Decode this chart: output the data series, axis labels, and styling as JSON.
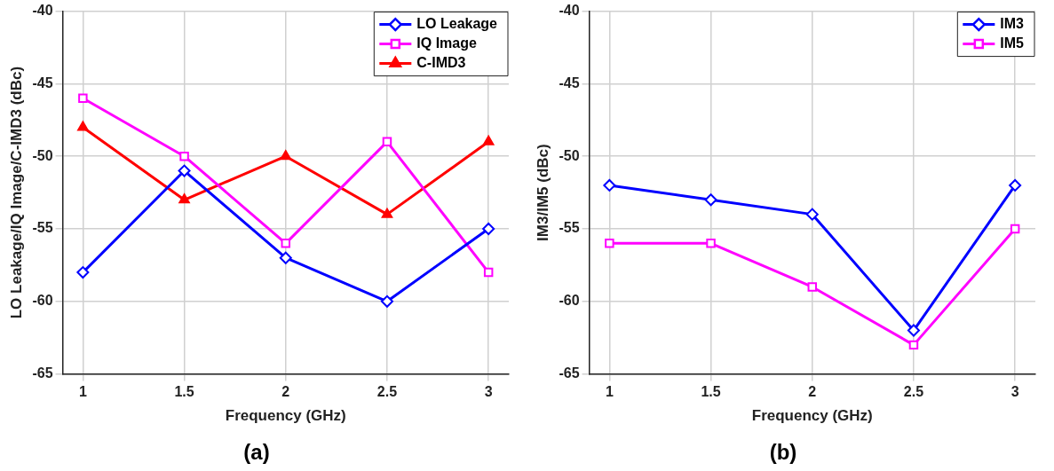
{
  "chart_data": [
    {
      "type": "line",
      "title": "(a)",
      "xlabel": "Frequency (GHz)",
      "ylabel": "LO Leakage/IQ Image/C-IMD3 (dBc)",
      "x": [
        1,
        1.5,
        2,
        2.5,
        3
      ],
      "xlim": [
        0.9,
        3.1
      ],
      "xticks": [
        1,
        1.5,
        2,
        2.5,
        3
      ],
      "ylim": [
        -65,
        -40
      ],
      "yticks": [
        -65,
        -60,
        -55,
        -50,
        -45,
        -40
      ],
      "grid": true,
      "legend": "top right",
      "series": [
        {
          "name": "LO Leakage",
          "color": "#0000ff",
          "marker": "diamond",
          "values": [
            -58,
            -51,
            -57,
            -60,
            -55
          ]
        },
        {
          "name": "IQ Image",
          "color": "#ff00ff",
          "marker": "square",
          "values": [
            -46,
            -50,
            -56,
            -49,
            -58
          ]
        },
        {
          "name": "C-IMD3",
          "color": "#ff0000",
          "marker": "triangle",
          "values": [
            -48,
            -53,
            -50,
            -54,
            -49
          ]
        }
      ]
    },
    {
      "type": "line",
      "title": "(b)",
      "xlabel": "Frequency (GHz)",
      "ylabel": "IM3/IM5 (dBc)",
      "x": [
        1,
        1.5,
        2,
        2.5,
        3
      ],
      "xlim": [
        0.9,
        3.1
      ],
      "xticks": [
        1,
        1.5,
        2,
        2.5,
        3
      ],
      "ylim": [
        -65,
        -40
      ],
      "yticks": [
        -65,
        -60,
        -55,
        -50,
        -45,
        -40
      ],
      "grid": true,
      "legend": "top right",
      "series": [
        {
          "name": "IM3",
          "color": "#0000ff",
          "marker": "diamond",
          "values": [
            -52,
            -53,
            -54,
            -62,
            -52
          ]
        },
        {
          "name": "IM5",
          "color": "#ff00ff",
          "marker": "square",
          "values": [
            -56,
            -56,
            -59,
            -63,
            -55
          ]
        }
      ]
    }
  ]
}
